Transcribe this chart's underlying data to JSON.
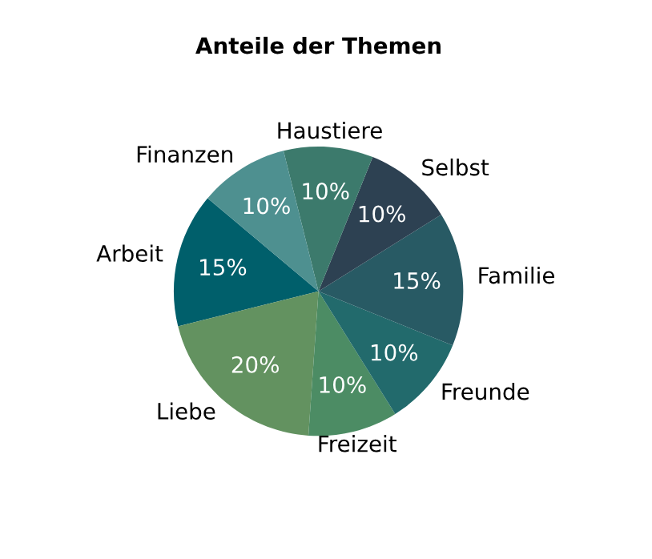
{
  "chart_data": {
    "type": "pie",
    "title": "Anteile der Themen",
    "categories": [
      "Arbeit",
      "Liebe",
      "Freizeit",
      "Freunde",
      "Familie",
      "Selbst",
      "Haustiere",
      "Finanzen"
    ],
    "values": [
      15,
      20,
      10,
      10,
      15,
      10,
      10,
      10
    ],
    "colors": [
      "#005f6b",
      "#639260",
      "#4c8c64",
      "#226a6c",
      "#285a64",
      "#2d4152",
      "#3c7a6c",
      "#4e9090"
    ],
    "value_labels": [
      "15%",
      "20%",
      "10%",
      "10%",
      "15%",
      "10%",
      "10%",
      "10%"
    ]
  }
}
